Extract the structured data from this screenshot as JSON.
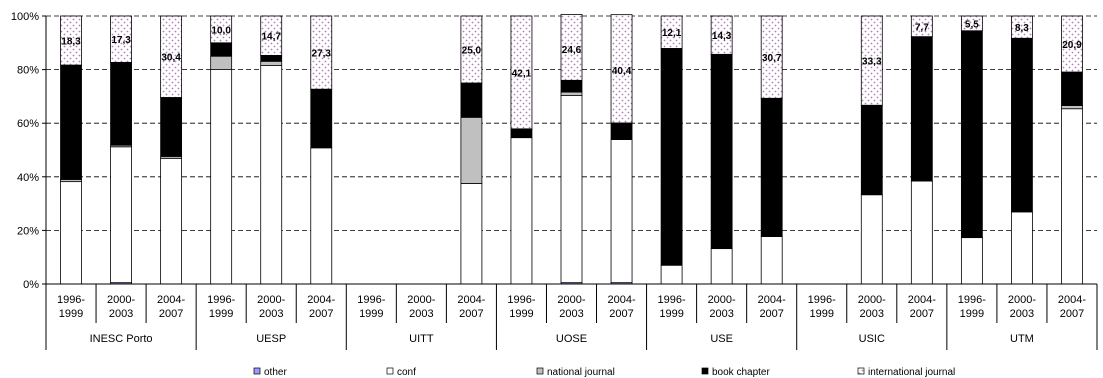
{
  "chart_data": {
    "type": "bar",
    "stacked": true,
    "percent_axis": true,
    "ylim": [
      0,
      100
    ],
    "y_ticks": [
      "0%",
      "20%",
      "40%",
      "60%",
      "80%",
      "100%"
    ],
    "grid": "horizontal dashed",
    "legend_position": "bottom",
    "groups": [
      {
        "name": "INESC Porto",
        "periods": [
          "1996-\n1999",
          "2000-\n2003",
          "2004-\n2007"
        ]
      },
      {
        "name": "UESP",
        "periods": [
          "1996-\n1999",
          "2000-\n2003",
          "2004-\n2007"
        ]
      },
      {
        "name": "UITT",
        "periods": [
          "1996-\n1999",
          "2000-\n2003",
          "2004-\n2007"
        ]
      },
      {
        "name": "UOSE",
        "periods": [
          "1996-\n1999",
          "2000-\n2003",
          "2004-\n2007"
        ]
      },
      {
        "name": "USE",
        "periods": [
          "1996-\n1999",
          "2000-\n2003",
          "2004-\n2007"
        ]
      },
      {
        "name": "USIC",
        "periods": [
          "1996-\n1999",
          "2000-\n2003",
          "2004-\n2007"
        ]
      },
      {
        "name": "UTM",
        "periods": [
          "1996-\n1999",
          "2000-\n2003",
          "2004-\n2007"
        ]
      }
    ],
    "series": [
      {
        "name": "other",
        "color": "#9999ff",
        "pattern": "solid",
        "values": [
          0,
          0.5,
          0,
          0,
          0,
          0,
          0,
          0,
          0,
          0,
          0.5,
          0.5,
          0,
          0,
          0,
          0,
          0,
          0,
          0,
          0,
          0
        ]
      },
      {
        "name": "conf",
        "color": "#ffffff",
        "pattern": "solid",
        "values": [
          38.2,
          50.7,
          46.9,
          80,
          81.5,
          50.8,
          0,
          0,
          37.5,
          54.6,
          69.8,
          53.4,
          7,
          13.2,
          17.7,
          0,
          33.3,
          38.4,
          17.3,
          26.9,
          65.4
        ]
      },
      {
        "name": "national journal",
        "color": "#c0c0c0",
        "pattern": "solid",
        "values": [
          0.8,
          0.6,
          0.7,
          5,
          1.6,
          0,
          0,
          0,
          24.7,
          0,
          1.3,
          0,
          0,
          0,
          0,
          0,
          0,
          0,
          0,
          0,
          1.2
        ]
      },
      {
        "name": "book chapter",
        "color": "#000000",
        "pattern": "solid",
        "values": [
          42.7,
          30.9,
          22,
          5,
          2.2,
          21.9,
          0,
          0,
          12.8,
          3.3,
          4.4,
          6.2,
          80.9,
          72.5,
          51.6,
          0,
          33.4,
          53.9,
          77.2,
          64.8,
          12.5
        ]
      },
      {
        "name": "international journal",
        "color": "#cc99cc",
        "pattern": "dots",
        "values": [
          18.3,
          17.3,
          30.4,
          10,
          14.7,
          27.3,
          0,
          0,
          25,
          42.1,
          24.6,
          40.4,
          12.1,
          14.3,
          30.7,
          0,
          33.3,
          7.7,
          5.5,
          8.3,
          20.9
        ]
      }
    ],
    "data_labels": [
      "18,3",
      "17,3",
      "30,4",
      "10,0",
      "14,7",
      "27,3",
      "",
      "",
      "25,0",
      "42,1",
      "24,6",
      "40,4",
      "12,1",
      "14,3",
      "30,7",
      "",
      "33,3",
      "7,7",
      "5,5",
      "8,3",
      "20,9"
    ]
  }
}
